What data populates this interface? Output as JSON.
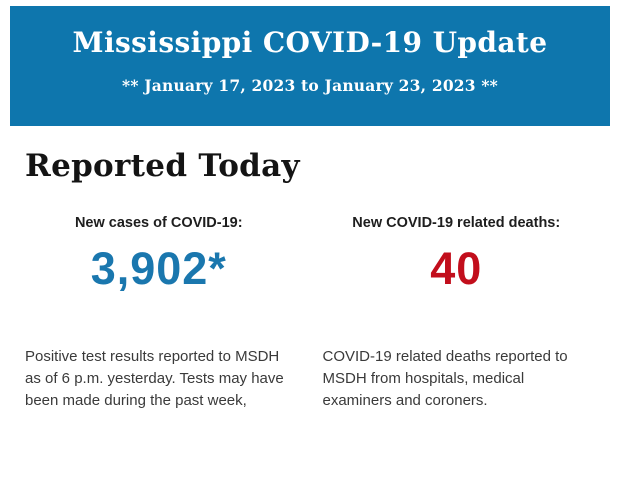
{
  "banner": {
    "title": "Mississippi COVID-19 Update",
    "subtitle": "** January 17, 2023 to January 23, 2023 **",
    "background_color": "#0e76ad",
    "text_color": "#ffffff"
  },
  "section": {
    "heading": "Reported Today"
  },
  "stats": {
    "cases": {
      "label": "New cases of COVID-19:",
      "value": "3,902*",
      "value_color": "#1a77ae",
      "description": "Positive test results reported to MSDH as of 6 p.m. yesterday. Tests may have been made during the past week,"
    },
    "deaths": {
      "label": "New COVID-19 related deaths:",
      "value": "40",
      "value_color": "#c20e1c",
      "description": "COVID-19 related deaths reported to MSDH from hospitals, medical examiners and coroners."
    }
  }
}
